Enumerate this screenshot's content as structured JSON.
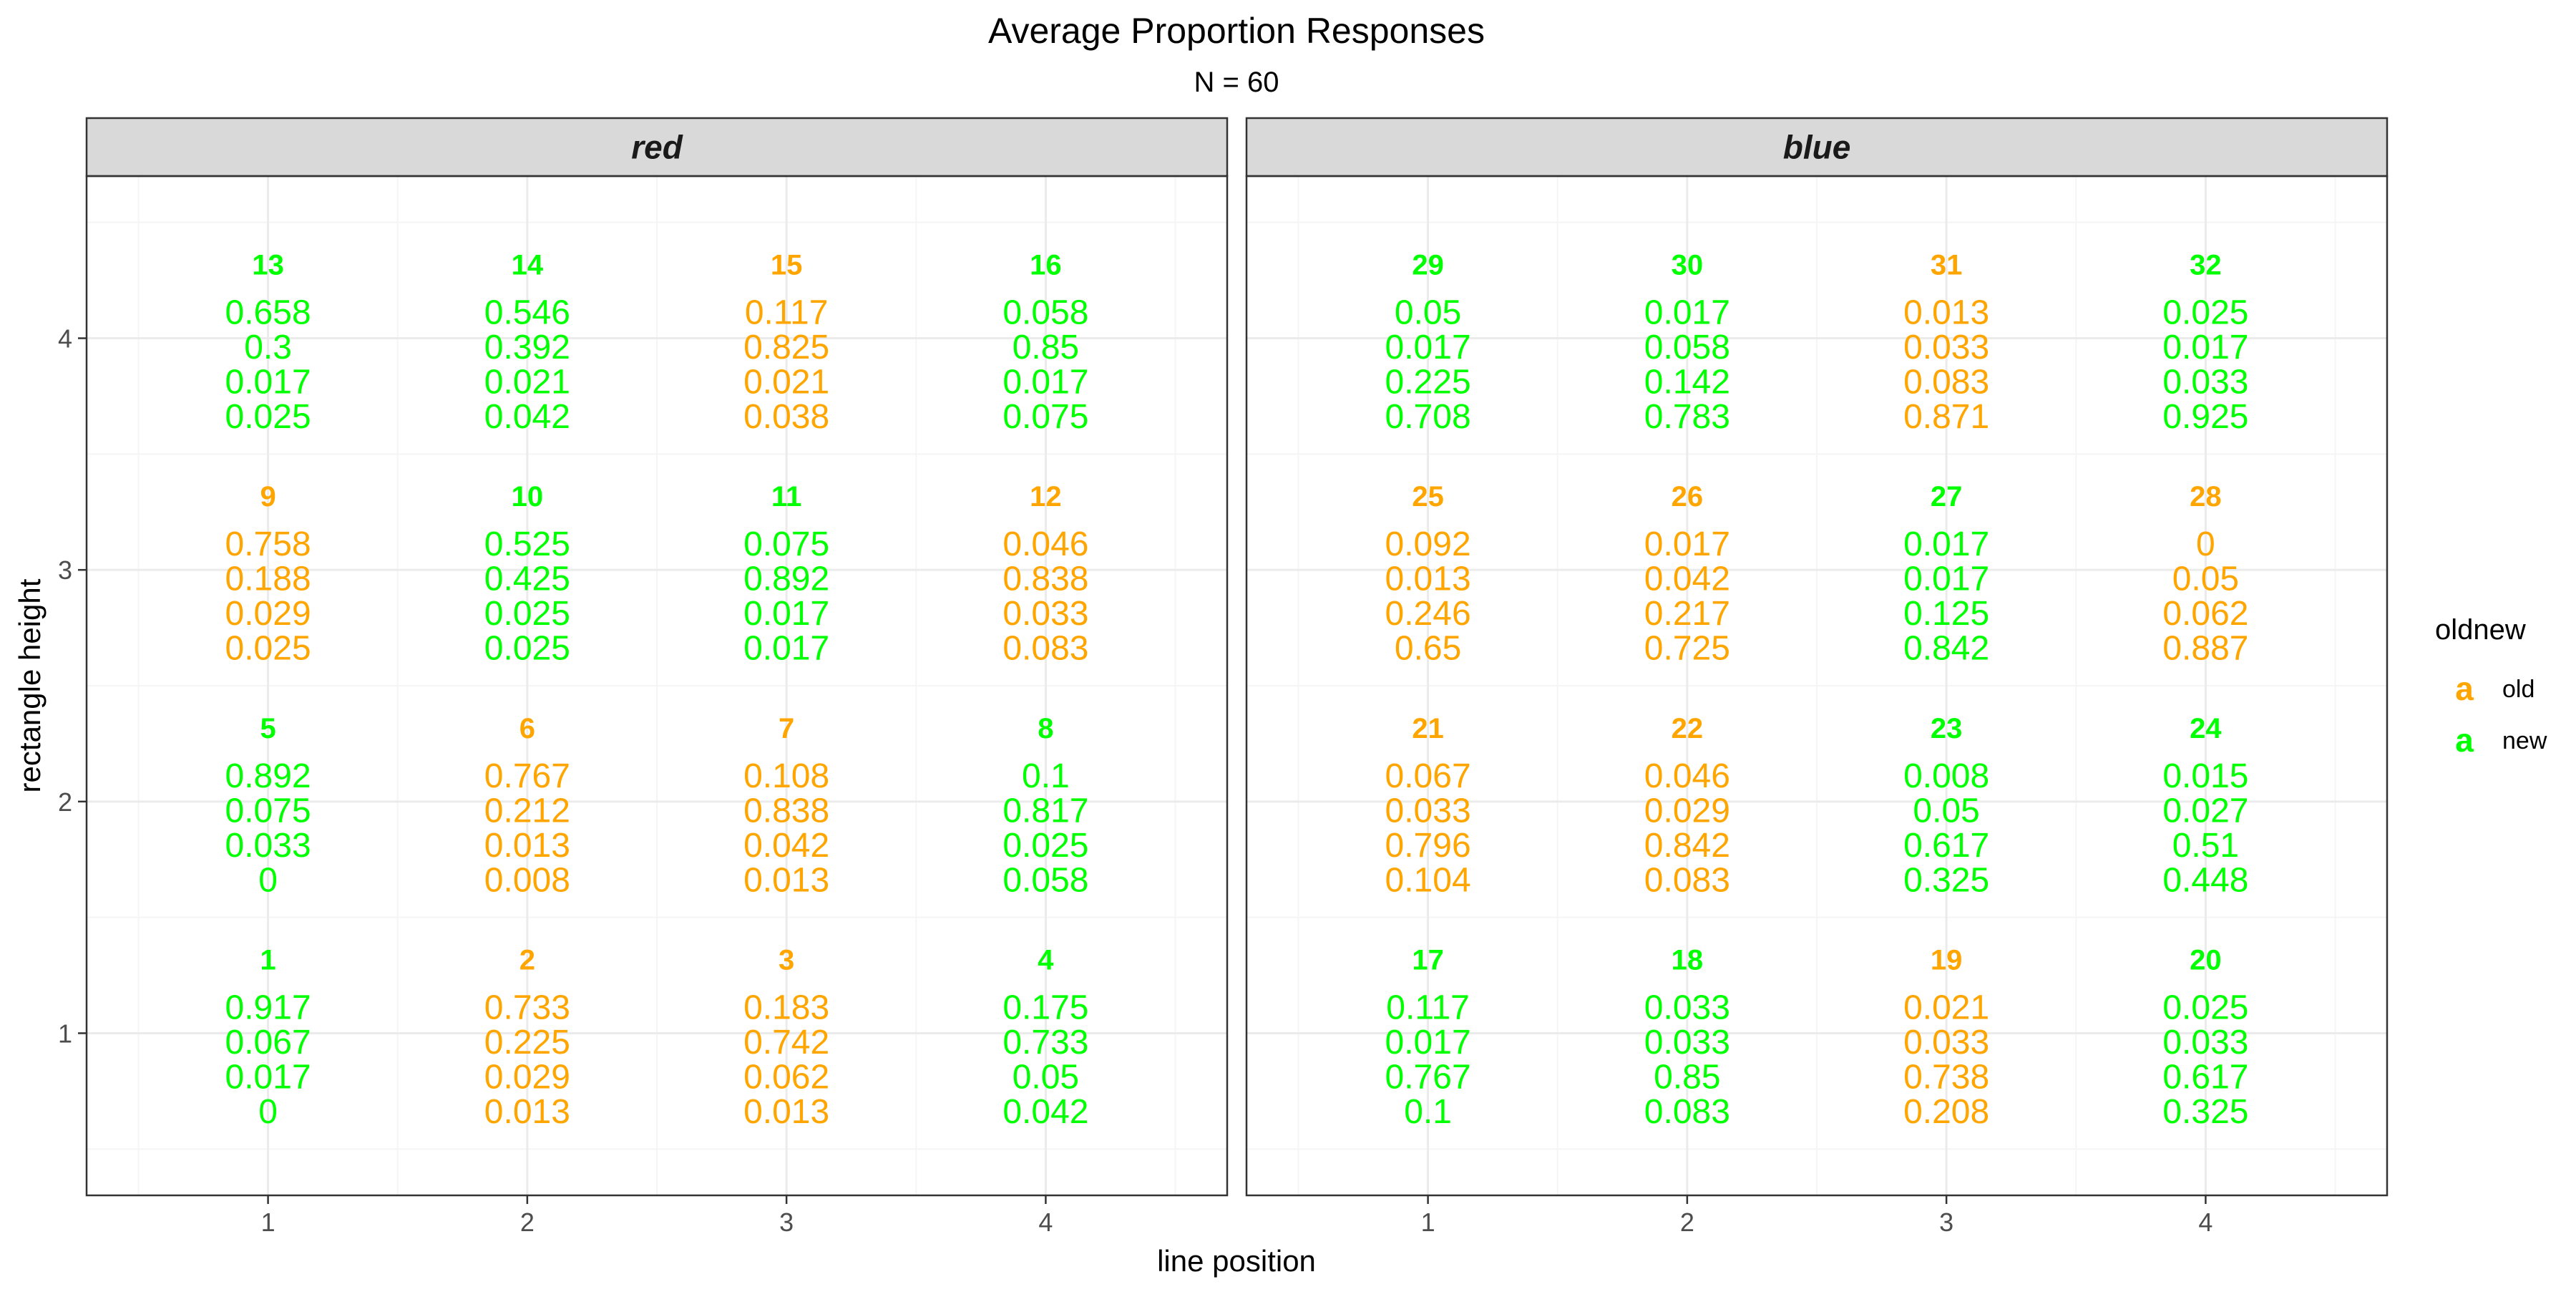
{
  "colors": {
    "old": "#FFA500",
    "new": "#00FF00",
    "strip_bg": "#D9D9D9",
    "panel_border": "#333333",
    "grid_major": "#EBEBEB",
    "grid_minor": "#F5F5F5",
    "text": "#1A1A1A",
    "tick_text": "#4D4D4D"
  },
  "chart_data": {
    "type": "text-facet",
    "title": "Average Proportion Responses",
    "subtitle": "N =  60",
    "xlabel": "line position",
    "ylabel": "rectangle height",
    "x_ticks": [
      "1",
      "2",
      "3",
      "4"
    ],
    "y_ticks": [
      "1",
      "2",
      "3",
      "4"
    ],
    "xlim": [
      0.3,
      4.7
    ],
    "ylim": [
      0.3,
      4.7
    ],
    "grid": true,
    "legend": {
      "title": "oldnew",
      "position": "right",
      "key_glyph": "a",
      "entries": [
        {
          "label": "old",
          "group": "old"
        },
        {
          "label": "new",
          "group": "new"
        }
      ]
    },
    "panels": [
      {
        "name": "red",
        "cells": [
          {
            "id": "13",
            "x": 1,
            "y": 4,
            "group": "new",
            "values": [
              "0.658",
              "0.3",
              "0.017",
              "0.025"
            ]
          },
          {
            "id": "14",
            "x": 2,
            "y": 4,
            "group": "new",
            "values": [
              "0.546",
              "0.392",
              "0.021",
              "0.042"
            ]
          },
          {
            "id": "15",
            "x": 3,
            "y": 4,
            "group": "old",
            "values": [
              "0.117",
              "0.825",
              "0.021",
              "0.038"
            ]
          },
          {
            "id": "16",
            "x": 4,
            "y": 4,
            "group": "new",
            "values": [
              "0.058",
              "0.85",
              "0.017",
              "0.075"
            ]
          },
          {
            "id": "9",
            "x": 1,
            "y": 3,
            "group": "old",
            "values": [
              "0.758",
              "0.188",
              "0.029",
              "0.025"
            ]
          },
          {
            "id": "10",
            "x": 2,
            "y": 3,
            "group": "new",
            "values": [
              "0.525",
              "0.425",
              "0.025",
              "0.025"
            ]
          },
          {
            "id": "11",
            "x": 3,
            "y": 3,
            "group": "new",
            "values": [
              "0.075",
              "0.892",
              "0.017",
              "0.017"
            ]
          },
          {
            "id": "12",
            "x": 4,
            "y": 3,
            "group": "old",
            "values": [
              "0.046",
              "0.838",
              "0.033",
              "0.083"
            ]
          },
          {
            "id": "5",
            "x": 1,
            "y": 2,
            "group": "new",
            "values": [
              "0.892",
              "0.075",
              "0.033",
              "0"
            ]
          },
          {
            "id": "6",
            "x": 2,
            "y": 2,
            "group": "old",
            "values": [
              "0.767",
              "0.212",
              "0.013",
              "0.008"
            ]
          },
          {
            "id": "7",
            "x": 3,
            "y": 2,
            "group": "old",
            "values": [
              "0.108",
              "0.838",
              "0.042",
              "0.013"
            ]
          },
          {
            "id": "8",
            "x": 4,
            "y": 2,
            "group": "new",
            "values": [
              "0.1",
              "0.817",
              "0.025",
              "0.058"
            ]
          },
          {
            "id": "1",
            "x": 1,
            "y": 1,
            "group": "new",
            "values": [
              "0.917",
              "0.067",
              "0.017",
              "0"
            ]
          },
          {
            "id": "2",
            "x": 2,
            "y": 1,
            "group": "old",
            "values": [
              "0.733",
              "0.225",
              "0.029",
              "0.013"
            ]
          },
          {
            "id": "3",
            "x": 3,
            "y": 1,
            "group": "old",
            "values": [
              "0.183",
              "0.742",
              "0.062",
              "0.013"
            ]
          },
          {
            "id": "4",
            "x": 4,
            "y": 1,
            "group": "new",
            "values": [
              "0.175",
              "0.733",
              "0.05",
              "0.042"
            ]
          }
        ]
      },
      {
        "name": "blue",
        "cells": [
          {
            "id": "29",
            "x": 1,
            "y": 4,
            "group": "new",
            "values": [
              "0.05",
              "0.017",
              "0.225",
              "0.708"
            ]
          },
          {
            "id": "30",
            "x": 2,
            "y": 4,
            "group": "new",
            "values": [
              "0.017",
              "0.058",
              "0.142",
              "0.783"
            ]
          },
          {
            "id": "31",
            "x": 3,
            "y": 4,
            "group": "old",
            "values": [
              "0.013",
              "0.033",
              "0.083",
              "0.871"
            ]
          },
          {
            "id": "32",
            "x": 4,
            "y": 4,
            "group": "new",
            "values": [
              "0.025",
              "0.017",
              "0.033",
              "0.925"
            ]
          },
          {
            "id": "25",
            "x": 1,
            "y": 3,
            "group": "old",
            "values": [
              "0.092",
              "0.013",
              "0.246",
              "0.65"
            ]
          },
          {
            "id": "26",
            "x": 2,
            "y": 3,
            "group": "old",
            "values": [
              "0.017",
              "0.042",
              "0.217",
              "0.725"
            ]
          },
          {
            "id": "27",
            "x": 3,
            "y": 3,
            "group": "new",
            "values": [
              "0.017",
              "0.017",
              "0.125",
              "0.842"
            ]
          },
          {
            "id": "28",
            "x": 4,
            "y": 3,
            "group": "old",
            "values": [
              "0",
              "0.05",
              "0.062",
              "0.887"
            ]
          },
          {
            "id": "21",
            "x": 1,
            "y": 2,
            "group": "old",
            "values": [
              "0.067",
              "0.033",
              "0.796",
              "0.104"
            ]
          },
          {
            "id": "22",
            "x": 2,
            "y": 2,
            "group": "old",
            "values": [
              "0.046",
              "0.029",
              "0.842",
              "0.083"
            ]
          },
          {
            "id": "23",
            "x": 3,
            "y": 2,
            "group": "new",
            "values": [
              "0.008",
              "0.05",
              "0.617",
              "0.325"
            ]
          },
          {
            "id": "24",
            "x": 4,
            "y": 2,
            "group": "new",
            "values": [
              "0.015",
              "0.027",
              "0.51",
              "0.448"
            ]
          },
          {
            "id": "17",
            "x": 1,
            "y": 1,
            "group": "new",
            "values": [
              "0.117",
              "0.017",
              "0.767",
              "0.1"
            ]
          },
          {
            "id": "18",
            "x": 2,
            "y": 1,
            "group": "new",
            "values": [
              "0.033",
              "0.033",
              "0.85",
              "0.083"
            ]
          },
          {
            "id": "19",
            "x": 3,
            "y": 1,
            "group": "old",
            "values": [
              "0.021",
              "0.033",
              "0.738",
              "0.208"
            ]
          },
          {
            "id": "20",
            "x": 4,
            "y": 1,
            "group": "new",
            "values": [
              "0.025",
              "0.033",
              "0.617",
              "0.325"
            ]
          }
        ]
      }
    ]
  }
}
